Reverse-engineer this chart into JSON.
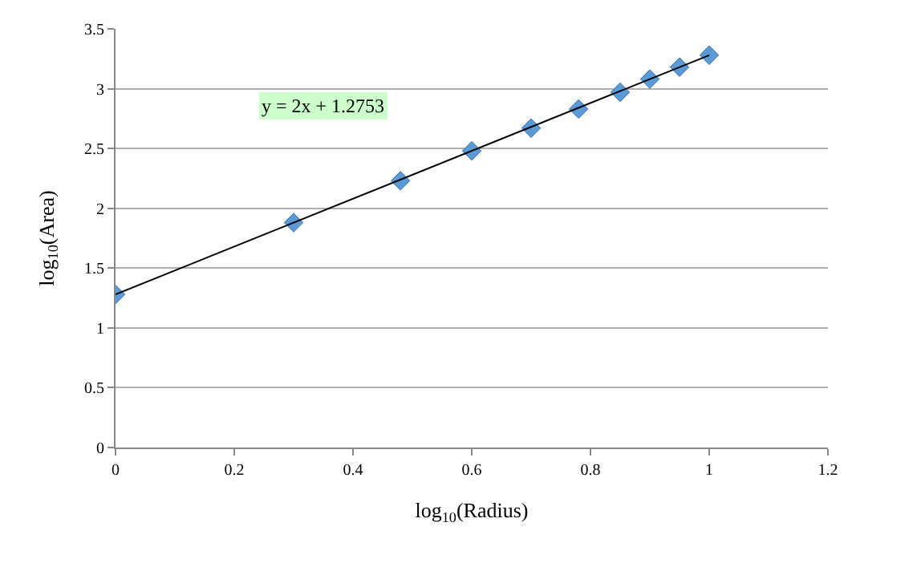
{
  "chart_data": {
    "type": "scatter",
    "xlabel": "log$_{10}$(Radius)",
    "ylabel": "log$_{10}$(Area)",
    "xlim": [
      0,
      1.2
    ],
    "xticks": [
      0,
      0.2,
      0.4,
      0.6,
      0.8,
      1,
      1.2
    ],
    "ylim": [
      0,
      3.5
    ],
    "yticks": [
      0,
      0.5,
      1,
      1.5,
      2,
      2.5,
      3,
      3.5
    ],
    "grid": "y",
    "annotations": [
      "y = 2x + 1.2753"
    ],
    "series": [
      {
        "marker": "diamond",
        "color": "#5b9bd5",
        "x": [
          0,
          0.3,
          0.48,
          0.6,
          0.7,
          0.78,
          0.85,
          0.9,
          0.95,
          1
        ],
        "values": [
          1.28,
          1.88,
          2.23,
          2.48,
          2.67,
          2.83,
          2.97,
          3.08,
          3.18,
          3.28
        ]
      },
      {
        "type": "line",
        "marker": "none",
        "line_style": "solid",
        "color": "#000000",
        "x": [
          0,
          1
        ],
        "values": [
          1.28,
          3.28
        ]
      }
    ]
  }
}
